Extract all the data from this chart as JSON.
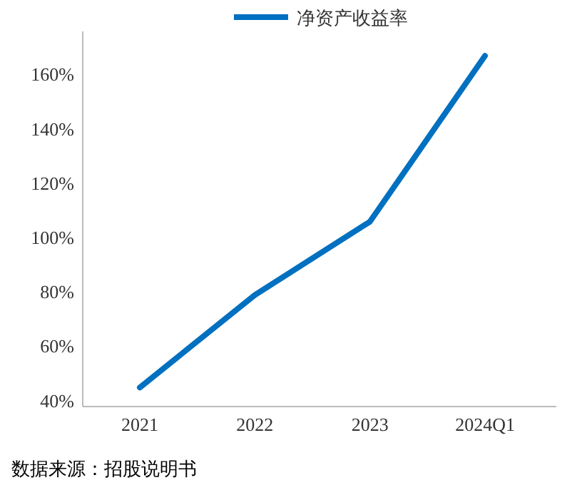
{
  "chart_data": {
    "type": "line",
    "categories": [
      "2021",
      "2022",
      "2023",
      "2024Q1"
    ],
    "series": [
      {
        "name": "净资产收益率",
        "color": "#0070c0",
        "values": [
          45,
          79,
          106,
          167
        ]
      }
    ],
    "ylim": [
      38,
      176
    ],
    "yticks": [
      {
        "value": 40,
        "label": "40%"
      },
      {
        "value": 60,
        "label": "60%"
      },
      {
        "value": 80,
        "label": "80%"
      },
      {
        "value": 100,
        "label": "100%"
      },
      {
        "value": 120,
        "label": "120%"
      },
      {
        "value": 140,
        "label": "140%"
      },
      {
        "value": 160,
        "label": "160%"
      }
    ],
    "legend": "top",
    "grid": false,
    "marker": "none",
    "line_style": "solid",
    "annotations": [
      "数据来源：招股说明书"
    ]
  }
}
